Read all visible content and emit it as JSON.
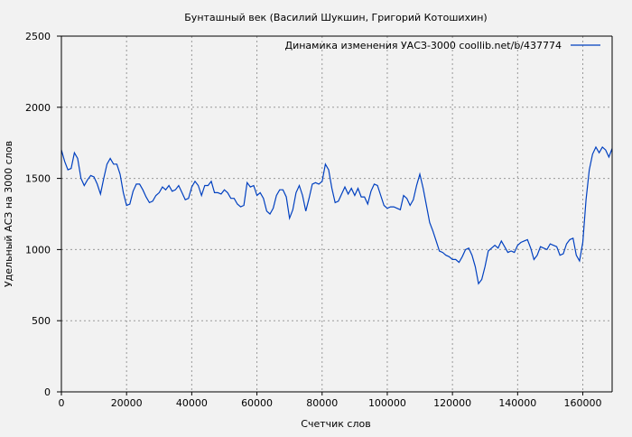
{
  "chart_data": {
    "type": "line",
    "title": "Бунташный век (Василий Шукшин, Григорий Котошихин)",
    "xlabel": "Счетчик слов",
    "ylabel": "Удельный АСЗ на 3000  слов",
    "xlim": [
      0,
      169000
    ],
    "ylim": [
      0,
      2500
    ],
    "xticks": [
      0,
      20000,
      40000,
      60000,
      80000,
      100000,
      120000,
      140000,
      160000
    ],
    "yticks": [
      0,
      500,
      1000,
      1500,
      2000,
      2500
    ],
    "grid": true,
    "legend_position": "top-right",
    "series": [
      {
        "name": "Динамика изменения УАСЗ-3000  coollib.net/b/437774",
        "color": "#0040c0",
        "x": [
          0,
          1000,
          2000,
          3000,
          4000,
          5000,
          6000,
          7000,
          8000,
          9000,
          10000,
          11000,
          12000,
          13000,
          14000,
          15000,
          16000,
          17000,
          18000,
          19000,
          20000,
          21000,
          22000,
          23000,
          24000,
          25000,
          26000,
          27000,
          28000,
          29000,
          30000,
          31000,
          32000,
          33000,
          34000,
          35000,
          36000,
          37000,
          38000,
          39000,
          40000,
          41000,
          42000,
          43000,
          44000,
          45000,
          46000,
          47000,
          48000,
          49000,
          50000,
          51000,
          52000,
          53000,
          54000,
          55000,
          56000,
          57000,
          58000,
          59000,
          60000,
          61000,
          62000,
          63000,
          64000,
          65000,
          66000,
          67000,
          68000,
          69000,
          70000,
          71000,
          72000,
          73000,
          74000,
          75000,
          76000,
          77000,
          78000,
          79000,
          80000,
          81000,
          82000,
          83000,
          84000,
          85000,
          86000,
          87000,
          88000,
          89000,
          90000,
          91000,
          92000,
          93000,
          94000,
          95000,
          96000,
          97000,
          98000,
          99000,
          100000,
          101000,
          102000,
          103000,
          104000,
          105000,
          106000,
          107000,
          108000,
          109000,
          110000,
          111000,
          112000,
          113000,
          114000,
          115000,
          116000,
          117000,
          118000,
          119000,
          120000,
          121000,
          122000,
          123000,
          124000,
          125000,
          126000,
          127000,
          128000,
          129000,
          130000,
          131000,
          132000,
          133000,
          134000,
          135000,
          136000,
          137000,
          138000,
          139000,
          140000,
          141000,
          142000,
          143000,
          144000,
          145000,
          146000,
          147000,
          148000,
          149000,
          150000,
          151000,
          152000,
          153000,
          154000,
          155000,
          156000,
          157000,
          158000,
          159000,
          160000,
          161000,
          162000,
          163000,
          164000,
          165000,
          166000,
          167000,
          168000,
          169000
        ],
        "y": [
          1700,
          1620,
          1560,
          1570,
          1680,
          1640,
          1500,
          1450,
          1490,
          1520,
          1510,
          1460,
          1390,
          1500,
          1600,
          1640,
          1600,
          1600,
          1530,
          1400,
          1310,
          1320,
          1410,
          1460,
          1460,
          1420,
          1370,
          1330,
          1340,
          1380,
          1400,
          1440,
          1420,
          1450,
          1410,
          1420,
          1450,
          1400,
          1350,
          1360,
          1440,
          1480,
          1450,
          1380,
          1450,
          1450,
          1480,
          1400,
          1400,
          1390,
          1420,
          1400,
          1360,
          1360,
          1320,
          1300,
          1310,
          1470,
          1440,
          1450,
          1380,
          1400,
          1360,
          1270,
          1250,
          1290,
          1380,
          1420,
          1420,
          1370,
          1220,
          1280,
          1400,
          1450,
          1380,
          1270,
          1360,
          1460,
          1470,
          1460,
          1480,
          1600,
          1560,
          1430,
          1330,
          1340,
          1390,
          1440,
          1390,
          1430,
          1380,
          1430,
          1370,
          1370,
          1320,
          1410,
          1460,
          1450,
          1380,
          1310,
          1290,
          1300,
          1300,
          1290,
          1280,
          1380,
          1360,
          1310,
          1350,
          1450,
          1530,
          1430,
          1310,
          1190,
          1130,
          1060,
          990,
          980,
          960,
          950,
          930,
          930,
          910,
          950,
          1000,
          1010,
          960,
          880,
          760,
          790,
          880,
          990,
          1010,
          1030,
          1010,
          1060,
          1020,
          980,
          990,
          980,
          1030,
          1050,
          1060,
          1070,
          1010,
          930,
          960,
          1020,
          1010,
          1000,
          1040,
          1030,
          1020,
          960,
          970,
          1040,
          1070,
          1080,
          960,
          920,
          1050,
          1350,
          1560,
          1670,
          1720,
          1680,
          1720,
          1700,
          1650,
          1710
        ]
      }
    ]
  }
}
